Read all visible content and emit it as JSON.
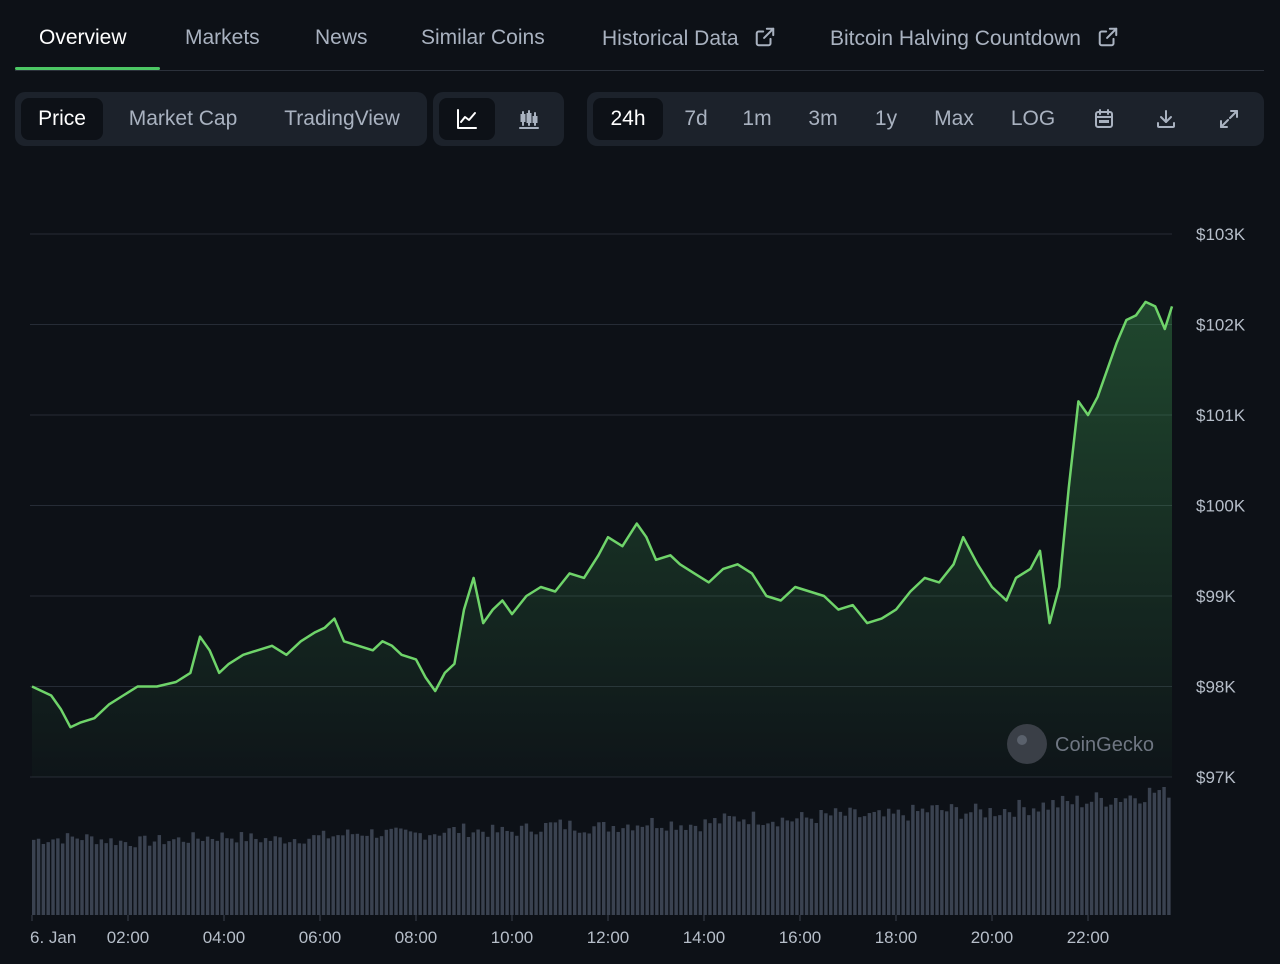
{
  "tabs": [
    {
      "label": "Overview",
      "active": true
    },
    {
      "label": "Markets"
    },
    {
      "label": "News"
    },
    {
      "label": "Similar Coins"
    },
    {
      "label": "Historical Data",
      "external": true
    },
    {
      "label": "Bitcoin Halving Countdown",
      "external": true
    }
  ],
  "view_toggle": [
    "Price",
    "Market Cap",
    "TradingView"
  ],
  "chart_type_icons": [
    "line-chart-icon",
    "candlestick-chart-icon"
  ],
  "ranges": [
    "24h",
    "7d",
    "1m",
    "3m",
    "1y",
    "Max",
    "LOG"
  ],
  "tool_icons": [
    "calendar-icon",
    "download-icon",
    "expand-icon"
  ],
  "watermark": "CoinGecko",
  "colors": {
    "line": "#6fd46a",
    "accent": "#4cc764",
    "volume": "#3a4250"
  },
  "chart_data": {
    "type": "area",
    "y_ticks": [
      "$103K",
      "$102K",
      "$101K",
      "$100K",
      "$99K",
      "$98K",
      "$97K"
    ],
    "y_tick_values": [
      103000,
      102000,
      101000,
      100000,
      99000,
      98000,
      97000
    ],
    "ylim": [
      97000,
      103000
    ],
    "x_ticks": [
      "6. Jan",
      "02:00",
      "04:00",
      "06:00",
      "08:00",
      "10:00",
      "12:00",
      "14:00",
      "16:00",
      "18:00",
      "20:00",
      "22:00"
    ],
    "x_tick_hours": [
      0,
      2,
      4,
      6,
      8,
      10,
      12,
      14,
      16,
      18,
      20,
      22
    ],
    "xlim_hours": [
      0,
      23.75
    ],
    "grid": true,
    "price": [
      [
        0.0,
        98000
      ],
      [
        0.2,
        97950
      ],
      [
        0.4,
        97900
      ],
      [
        0.6,
        97750
      ],
      [
        0.8,
        97550
      ],
      [
        1.0,
        97600
      ],
      [
        1.3,
        97650
      ],
      [
        1.6,
        97800
      ],
      [
        1.9,
        97900
      ],
      [
        2.2,
        98000
      ],
      [
        2.6,
        98000
      ],
      [
        3.0,
        98050
      ],
      [
        3.3,
        98150
      ],
      [
        3.5,
        98550
      ],
      [
        3.7,
        98400
      ],
      [
        3.9,
        98150
      ],
      [
        4.1,
        98250
      ],
      [
        4.4,
        98350
      ],
      [
        4.7,
        98400
      ],
      [
        5.0,
        98450
      ],
      [
        5.3,
        98350
      ],
      [
        5.6,
        98500
      ],
      [
        5.9,
        98600
      ],
      [
        6.1,
        98650
      ],
      [
        6.3,
        98750
      ],
      [
        6.5,
        98500
      ],
      [
        6.8,
        98450
      ],
      [
        7.1,
        98400
      ],
      [
        7.3,
        98500
      ],
      [
        7.5,
        98450
      ],
      [
        7.7,
        98350
      ],
      [
        8.0,
        98300
      ],
      [
        8.2,
        98100
      ],
      [
        8.4,
        97950
      ],
      [
        8.6,
        98150
      ],
      [
        8.8,
        98250
      ],
      [
        9.0,
        98850
      ],
      [
        9.2,
        99200
      ],
      [
        9.4,
        98700
      ],
      [
        9.6,
        98850
      ],
      [
        9.8,
        98950
      ],
      [
        10.0,
        98800
      ],
      [
        10.3,
        99000
      ],
      [
        10.6,
        99100
      ],
      [
        10.9,
        99050
      ],
      [
        11.2,
        99250
      ],
      [
        11.5,
        99200
      ],
      [
        11.8,
        99450
      ],
      [
        12.0,
        99650
      ],
      [
        12.3,
        99550
      ],
      [
        12.6,
        99800
      ],
      [
        12.8,
        99650
      ],
      [
        13.0,
        99400
      ],
      [
        13.3,
        99450
      ],
      [
        13.5,
        99350
      ],
      [
        13.8,
        99250
      ],
      [
        14.1,
        99150
      ],
      [
        14.4,
        99300
      ],
      [
        14.7,
        99350
      ],
      [
        15.0,
        99250
      ],
      [
        15.3,
        99000
      ],
      [
        15.6,
        98950
      ],
      [
        15.9,
        99100
      ],
      [
        16.2,
        99050
      ],
      [
        16.5,
        99000
      ],
      [
        16.8,
        98850
      ],
      [
        17.1,
        98900
      ],
      [
        17.4,
        98700
      ],
      [
        17.7,
        98750
      ],
      [
        18.0,
        98850
      ],
      [
        18.3,
        99050
      ],
      [
        18.6,
        99200
      ],
      [
        18.9,
        99150
      ],
      [
        19.2,
        99350
      ],
      [
        19.4,
        99650
      ],
      [
        19.7,
        99350
      ],
      [
        20.0,
        99100
      ],
      [
        20.3,
        98950
      ],
      [
        20.5,
        99200
      ],
      [
        20.8,
        99300
      ],
      [
        21.0,
        99500
      ],
      [
        21.2,
        98700
      ],
      [
        21.4,
        99100
      ],
      [
        21.6,
        100200
      ],
      [
        21.8,
        101150
      ],
      [
        22.0,
        101000
      ],
      [
        22.2,
        101200
      ],
      [
        22.4,
        101500
      ],
      [
        22.6,
        101800
      ],
      [
        22.8,
        102050
      ],
      [
        23.0,
        102100
      ],
      [
        23.2,
        102250
      ],
      [
        23.4,
        102200
      ],
      [
        23.6,
        101950
      ],
      [
        23.75,
        102200
      ]
    ],
    "volume_levels": [
      0.6,
      0.62,
      0.58,
      0.6,
      0.63,
      0.6,
      0.62,
      0.66,
      0.64,
      0.68,
      0.66,
      0.72,
      0.7,
      0.74,
      0.72,
      0.78,
      0.76,
      0.8,
      0.78,
      0.84,
      0.82,
      0.86,
      0.9,
      0.94,
      1.0
    ]
  }
}
